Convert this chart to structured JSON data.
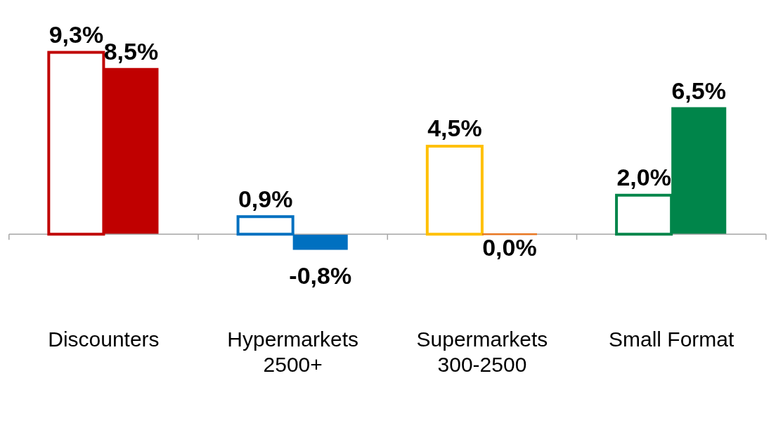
{
  "chart_data": {
    "type": "bar",
    "categories": [
      "Discounters",
      "Hypermarkets 2500+",
      "Supermarkets 300-2500",
      "Small Format"
    ],
    "series": [
      {
        "colors": [
          "#c00000",
          "#0070c0",
          "#ffc000",
          "#00854a"
        ],
        "values": [
          9.3,
          0.9,
          4.5,
          2.0
        ],
        "value_labels": [
          "9,3%",
          "0,9%",
          "4,5%",
          "2,0%"
        ]
      },
      {
        "colors": [
          "#c00000",
          "#0070c0",
          "#e87722",
          "#00854a"
        ],
        "values": [
          8.5,
          -0.8,
          0.0,
          6.5
        ],
        "value_labels": [
          "8,5%",
          "-0,8%",
          "0,0%",
          "6,5%"
        ]
      }
    ],
    "grid": false,
    "legend": false
  }
}
